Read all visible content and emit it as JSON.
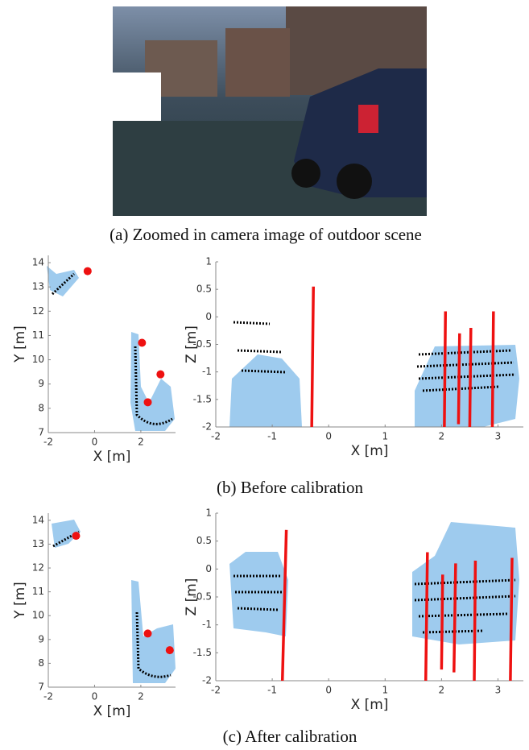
{
  "photo": {
    "caption": "(a) Zoomed in camera image of outdoor scene"
  },
  "captions": [
    "(b) Before calibration",
    "(c) After calibration"
  ],
  "chart_data": [
    {
      "type": "scatter",
      "xlabel": "X [m]",
      "ylabel": "Y [m]",
      "xlim": [
        -2,
        3.5
      ],
      "ylim": [
        7,
        14.3
      ],
      "xticks": [
        -2,
        0,
        2
      ],
      "yticks": [
        7,
        8,
        9,
        10,
        11,
        12,
        13,
        14
      ],
      "series": [
        {
          "color": "#ee1111",
          "mode": "markers",
          "x": [
            -0.3,
            2.05,
            2.85,
            2.3
          ],
          "y": [
            13.65,
            10.7,
            9.4,
            8.25
          ]
        }
      ]
    },
    {
      "type": "scatter",
      "xlabel": "X [m]",
      "ylabel": "Z [m]",
      "xlim": [
        -2,
        3.45
      ],
      "ylim": [
        -2,
        1
      ],
      "xticks": [
        -2,
        -1,
        0,
        1,
        2,
        3
      ],
      "yticks": [
        -2,
        -1.5,
        -1,
        -0.5,
        0,
        0.5,
        1
      ],
      "series": [
        {
          "color": "#ee1111",
          "mode": "lines",
          "x": [
            -0.3,
            -0.27,
            null,
            2.05,
            2.07,
            null,
            2.3,
            2.32,
            null,
            2.5,
            2.52,
            null,
            2.9,
            2.92
          ],
          "y": [
            -2,
            0.55,
            null,
            -2,
            0.1,
            null,
            -1.95,
            -0.3,
            null,
            -2,
            -0.2,
            null,
            -2,
            0.1
          ]
        }
      ]
    },
    {
      "type": "scatter",
      "xlabel": "X [m]",
      "ylabel": "Y [m]",
      "xlim": [
        -2,
        3.5
      ],
      "ylim": [
        7,
        14.3
      ],
      "xticks": [
        -2,
        0,
        2
      ],
      "yticks": [
        7,
        8,
        9,
        10,
        11,
        12,
        13,
        14
      ],
      "series": [
        {
          "color": "#ee1111",
          "mode": "markers",
          "x": [
            -0.8,
            2.3,
            3.25
          ],
          "y": [
            13.35,
            9.25,
            8.55
          ]
        }
      ]
    },
    {
      "type": "scatter",
      "xlabel": "X [m]",
      "ylabel": "Z [m]",
      "xlim": [
        -2,
        3.45
      ],
      "ylim": [
        -2,
        1
      ],
      "xticks": [
        -2,
        -1,
        0,
        1,
        2,
        3
      ],
      "yticks": [
        -2,
        -1.5,
        -1,
        -0.5,
        0,
        0.5,
        1
      ],
      "series": [
        {
          "color": "#ee1111",
          "mode": "lines",
          "x": [
            -0.82,
            -0.75,
            null,
            1.72,
            1.75,
            null,
            2.0,
            2.02,
            null,
            2.22,
            2.25,
            null,
            2.58,
            2.6,
            null,
            3.22,
            3.25
          ],
          "y": [
            -2,
            0.7,
            null,
            -2,
            0.3,
            null,
            -1.8,
            -0.1,
            null,
            -1.85,
            0.1,
            null,
            -2,
            0.15,
            null,
            -2,
            0.2
          ]
        }
      ]
    }
  ]
}
